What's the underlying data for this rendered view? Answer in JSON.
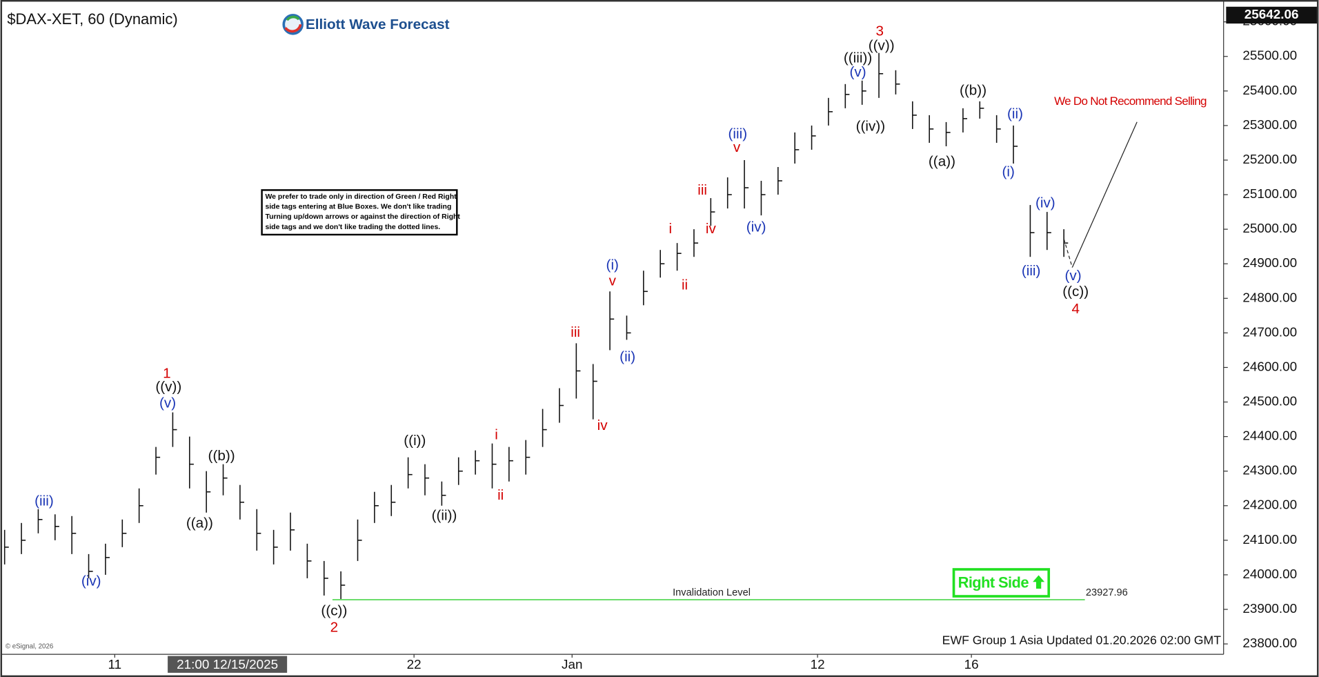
{
  "chart_data": {
    "type": "ohlc",
    "title": "$DAX-XET, 60 (Dynamic)",
    "logo": "Elliott Wave Forecast",
    "xlim": [
      -0.25,
      72.5
    ],
    "ylim": [
      23770,
      25645
    ],
    "high": [
      24130,
      24150,
      24190,
      24175,
      24170,
      24060,
      24090,
      24160,
      24250,
      24370,
      24470,
      24400,
      24300,
      24320,
      24260,
      24190,
      24130,
      24180,
      24090,
      24040,
      24010,
      24160,
      24240,
      24260,
      24340,
      24320,
      24270,
      24340,
      24360,
      24380,
      24370,
      24390,
      24480,
      24540,
      24670,
      24610,
      24820,
      24750,
      24880,
      24940,
      24960,
      25000,
      25090,
      25150,
      25200,
      25140,
      25180,
      25280,
      25300,
      25380,
      25420,
      25430,
      25510,
      25460,
      25370,
      25330,
      25310,
      25350,
      25370,
      25330,
      25300,
      25070,
      25050,
      25000
    ],
    "low": [
      24030,
      24060,
      24120,
      24100,
      24060,
      23990,
      24000,
      24080,
      24150,
      24290,
      24370,
      24250,
      24180,
      24230,
      24160,
      24070,
      24030,
      24070,
      23990,
      23940,
      23930,
      24040,
      24150,
      24170,
      24250,
      24230,
      24200,
      24260,
      24290,
      24250,
      24270,
      24290,
      24370,
      24440,
      24510,
      24450,
      24650,
      24680,
      24780,
      24860,
      24880,
      24920,
      25010,
      25060,
      25060,
      25040,
      25100,
      25190,
      25230,
      25300,
      25350,
      25360,
      25380,
      25390,
      25290,
      25250,
      25240,
      25280,
      25320,
      25250,
      25190,
      24920,
      24940,
      24920
    ],
    "close": [
      24080,
      24100,
      24160,
      24140,
      24120,
      24010,
      24050,
      24120,
      24200,
      24340,
      24420,
      24320,
      24240,
      24280,
      24210,
      24120,
      24080,
      24130,
      24040,
      23990,
      23970,
      24100,
      24200,
      24210,
      24290,
      24280,
      24230,
      24300,
      24330,
      24320,
      24330,
      24340,
      24420,
      24490,
      24590,
      24560,
      24740,
      24700,
      24820,
      24900,
      24930,
      24960,
      25050,
      25100,
      25120,
      25100,
      25140,
      25230,
      25270,
      25340,
      25390,
      25400,
      25450,
      25420,
      25330,
      25290,
      25280,
      25320,
      25350,
      25290,
      25240,
      24990,
      24990,
      24960
    ],
    "yticks": [
      {
        "value": 23800,
        "label": "23800.00"
      },
      {
        "value": 23900,
        "label": "23900.00"
      },
      {
        "value": 24000,
        "label": "24000.00"
      },
      {
        "value": 24100,
        "label": "24100.00"
      },
      {
        "value": 24200,
        "label": "24200.00"
      },
      {
        "value": 24300,
        "label": "24300.00"
      },
      {
        "value": 24400,
        "label": "24400.00"
      },
      {
        "value": 24500,
        "label": "24500.00"
      },
      {
        "value": 24600,
        "label": "24600.00"
      },
      {
        "value": 24700,
        "label": "24700.00"
      },
      {
        "value": 24800,
        "label": "24800.00"
      },
      {
        "value": 24900,
        "label": "24900.00"
      },
      {
        "value": 25000,
        "label": "25000.00"
      },
      {
        "value": 25100,
        "label": "25100.00"
      },
      {
        "value": 25200,
        "label": "25200.00"
      },
      {
        "value": 25300,
        "label": "25300.00"
      },
      {
        "value": 25400,
        "label": "25400.00"
      },
      {
        "value": 25500,
        "label": "25500.00"
      },
      {
        "value": 25600,
        "label": "25600.00"
      }
    ],
    "xticks": [
      {
        "value": 6.55,
        "label": "11"
      },
      {
        "value": 24.35,
        "label": "22"
      },
      {
        "value": 33.75,
        "label": "Jan"
      },
      {
        "value": 48.35,
        "label": "12"
      },
      {
        "value": 57.5,
        "label": "16"
      }
    ],
    "crosshair": {
      "value": 13.25,
      "label": "21:00 12/15/2025"
    },
    "last_price": 25642.06,
    "invalidation": {
      "label": "Invalidation Level",
      "value": 23927.96
    },
    "annotations": [
      {
        "text": "(iii)",
        "color": "#1a35b5",
        "x": 2.35,
        "y": 24211
      },
      {
        "text": "(iv)",
        "color": "#1a35b5",
        "x": 5.15,
        "y": 23980
      },
      {
        "text": "1",
        "color": "#d40000",
        "x": 9.65,
        "y": 24581
      },
      {
        "text": "((v))",
        "color": "#111111",
        "x": 9.75,
        "y": 24542
      },
      {
        "text": "(v)",
        "color": "#1a35b5",
        "x": 9.7,
        "y": 24495
      },
      {
        "text": "((a))",
        "color": "#111111",
        "x": 11.6,
        "y": 24148
      },
      {
        "text": "((b))",
        "color": "#111111",
        "x": 12.9,
        "y": 24342
      },
      {
        "text": "((c))",
        "color": "#111111",
        "x": 19.6,
        "y": 23894
      },
      {
        "text": "2",
        "color": "#d40000",
        "x": 19.6,
        "y": 23846
      },
      {
        "text": "((i))",
        "color": "#111111",
        "x": 24.4,
        "y": 24386
      },
      {
        "text": "((ii))",
        "color": "#111111",
        "x": 26.15,
        "y": 24169
      },
      {
        "text": "i",
        "color": "#d40000",
        "x": 29.25,
        "y": 24403
      },
      {
        "text": "ii",
        "color": "#d40000",
        "x": 29.5,
        "y": 24228
      },
      {
        "text": "iii",
        "color": "#d40000",
        "x": 33.95,
        "y": 24700
      },
      {
        "text": "iv",
        "color": "#d40000",
        "x": 35.55,
        "y": 24430
      },
      {
        "text": "(i)",
        "color": "#1a35b5",
        "x": 36.15,
        "y": 24894
      },
      {
        "text": "v",
        "color": "#d40000",
        "x": 36.15,
        "y": 24848
      },
      {
        "text": "(ii)",
        "color": "#1a35b5",
        "x": 37.05,
        "y": 24629
      },
      {
        "text": "i",
        "color": "#d40000",
        "x": 39.6,
        "y": 24999
      },
      {
        "text": "ii",
        "color": "#d40000",
        "x": 40.45,
        "y": 24836
      },
      {
        "text": "iii",
        "color": "#d40000",
        "x": 41.5,
        "y": 25111
      },
      {
        "text": "iv",
        "color": "#d40000",
        "x": 42,
        "y": 24999
      },
      {
        "text": "(iii)",
        "color": "#1a35b5",
        "x": 43.6,
        "y": 25274
      },
      {
        "text": "v",
        "color": "#d40000",
        "x": 43.55,
        "y": 25235
      },
      {
        "text": "(iv)",
        "color": "#1a35b5",
        "x": 44.7,
        "y": 25004
      },
      {
        "text": "((iii))",
        "color": "#111111",
        "x": 50.75,
        "y": 25493
      },
      {
        "text": "(v)",
        "color": "#1a35b5",
        "x": 50.75,
        "y": 25452
      },
      {
        "text": "3",
        "color": "#d40000",
        "x": 52.05,
        "y": 25571
      },
      {
        "text": "((v))",
        "color": "#111111",
        "x": 52.15,
        "y": 25529
      },
      {
        "text": "((iv))",
        "color": "#111111",
        "x": 51.5,
        "y": 25296
      },
      {
        "text": "((a))",
        "color": "#111111",
        "x": 55.75,
        "y": 25194
      },
      {
        "text": "((b))",
        "color": "#111111",
        "x": 57.6,
        "y": 25400
      },
      {
        "text": "(ii)",
        "color": "#1a35b5",
        "x": 60.1,
        "y": 25332
      },
      {
        "text": "(i)",
        "color": "#1a35b5",
        "x": 59.7,
        "y": 25164
      },
      {
        "text": "(iv)",
        "color": "#1a35b5",
        "x": 61.9,
        "y": 25074
      },
      {
        "text": "(iii)",
        "color": "#1a35b5",
        "x": 61.05,
        "y": 24877
      },
      {
        "text": "(v)",
        "color": "#1a35b5",
        "x": 63.55,
        "y": 24863
      },
      {
        "text": "((c))",
        "color": "#111111",
        "x": 63.7,
        "y": 24817
      },
      {
        "text": "4",
        "color": "#d40000",
        "x": 63.7,
        "y": 24768
      }
    ],
    "note": [
      "We prefer to trade only in direction of Green / Red Right",
      "side tags entering at Blue Boxes. We don't like trading",
      "Turning up/down arrows or against the direction of Right",
      "side tags and we don't like trading the dotted lines."
    ],
    "warning": "We Do Not Recommend Selling",
    "right_side": "Right Side",
    "footer": "EWF Group 1 Asia Updated 01.20.2026 02:00 GMT",
    "copyright": "© eSignal, 2026"
  }
}
